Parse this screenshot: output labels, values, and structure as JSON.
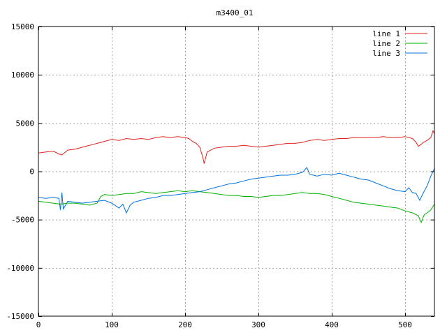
{
  "chart_data": {
    "type": "line",
    "title": "m3400_01",
    "xlabel": "",
    "ylabel": "",
    "xlim": [
      0,
      540
    ],
    "ylim": [
      -15000,
      15000
    ],
    "x_ticks": [
      0,
      100,
      200,
      300,
      400,
      500
    ],
    "y_ticks": [
      -15000,
      -10000,
      -5000,
      0,
      5000,
      10000,
      15000
    ],
    "grid": true,
    "legend_position": "top-right",
    "series": [
      {
        "name": "line 1",
        "color": "#e0201b",
        "x": [
          0,
          10,
          20,
          28,
          32,
          40,
          50,
          60,
          70,
          80,
          90,
          100,
          110,
          120,
          130,
          140,
          150,
          160,
          170,
          180,
          190,
          200,
          205,
          210,
          215,
          220,
          224,
          226,
          230,
          240,
          250,
          260,
          270,
          280,
          290,
          300,
          310,
          320,
          330,
          340,
          350,
          360,
          370,
          380,
          390,
          400,
          410,
          420,
          430,
          440,
          450,
          460,
          470,
          480,
          490,
          500,
          510,
          515,
          518,
          520,
          525,
          530,
          535,
          538,
          540
        ],
        "y": [
          1900,
          2000,
          2100,
          1800,
          1700,
          2200,
          2300,
          2500,
          2700,
          2900,
          3100,
          3300,
          3200,
          3400,
          3300,
          3400,
          3300,
          3500,
          3600,
          3500,
          3600,
          3500,
          3400,
          3100,
          2900,
          2500,
          1500,
          800,
          2000,
          2400,
          2500,
          2600,
          2600,
          2700,
          2600,
          2500,
          2600,
          2700,
          2800,
          2900,
          2900,
          3000,
          3200,
          3300,
          3200,
          3300,
          3400,
          3400,
          3500,
          3500,
          3500,
          3500,
          3600,
          3500,
          3500,
          3600,
          3400,
          3000,
          2600,
          2700,
          3000,
          3200,
          3500,
          4200,
          3900
        ]
      },
      {
        "name": "line 2",
        "color": "#00b000",
        "x": [
          0,
          10,
          20,
          30,
          40,
          50,
          60,
          70,
          80,
          85,
          90,
          100,
          110,
          120,
          130,
          140,
          150,
          160,
          170,
          180,
          190,
          200,
          210,
          220,
          230,
          240,
          250,
          260,
          270,
          280,
          290,
          300,
          310,
          320,
          330,
          340,
          350,
          360,
          370,
          380,
          390,
          400,
          410,
          420,
          430,
          440,
          450,
          460,
          470,
          480,
          490,
          500,
          510,
          518,
          522,
          526,
          530,
          535,
          540
        ],
        "y": [
          -3100,
          -3200,
          -3300,
          -3400,
          -3300,
          -3300,
          -3400,
          -3500,
          -3300,
          -2600,
          -2400,
          -2500,
          -2400,
          -2300,
          -2300,
          -2100,
          -2200,
          -2300,
          -2200,
          -2100,
          -2000,
          -2100,
          -2000,
          -2100,
          -2200,
          -2300,
          -2400,
          -2500,
          -2500,
          -2600,
          -2600,
          -2700,
          -2600,
          -2500,
          -2500,
          -2400,
          -2300,
          -2200,
          -2300,
          -2300,
          -2400,
          -2600,
          -2800,
          -3000,
          -3200,
          -3300,
          -3400,
          -3500,
          -3600,
          -3700,
          -3800,
          -4100,
          -4300,
          -4600,
          -5300,
          -4500,
          -4300,
          -4000,
          -3400
        ]
      },
      {
        "name": "line 3",
        "color": "#0070e0",
        "x": [
          0,
          10,
          20,
          28,
          30,
          32,
          34,
          40,
          50,
          60,
          70,
          80,
          90,
          100,
          110,
          115,
          120,
          125,
          130,
          140,
          150,
          160,
          170,
          180,
          190,
          200,
          210,
          220,
          230,
          240,
          250,
          260,
          270,
          280,
          290,
          300,
          310,
          320,
          330,
          340,
          350,
          360,
          366,
          370,
          380,
          390,
          400,
          410,
          420,
          430,
          440,
          450,
          460,
          470,
          480,
          490,
          500,
          505,
          510,
          515,
          520,
          525,
          530,
          535,
          540
        ],
        "y": [
          -2700,
          -2800,
          -2700,
          -2800,
          -4000,
          -2200,
          -3900,
          -3100,
          -3200,
          -3300,
          -3200,
          -3100,
          -3000,
          -3300,
          -3800,
          -3400,
          -4300,
          -3500,
          -3200,
          -3000,
          -2800,
          -2700,
          -2500,
          -2500,
          -2400,
          -2300,
          -2200,
          -2100,
          -1900,
          -1700,
          -1500,
          -1300,
          -1200,
          -1000,
          -800,
          -700,
          -600,
          -500,
          -400,
          -400,
          -300,
          -100,
          400,
          -300,
          -500,
          -300,
          -400,
          -200,
          -400,
          -600,
          -800,
          -900,
          -1200,
          -1500,
          -1800,
          -2000,
          -2100,
          -1700,
          -2200,
          -2300,
          -3000,
          -2200,
          -1500,
          -500,
          300
        ]
      }
    ]
  }
}
